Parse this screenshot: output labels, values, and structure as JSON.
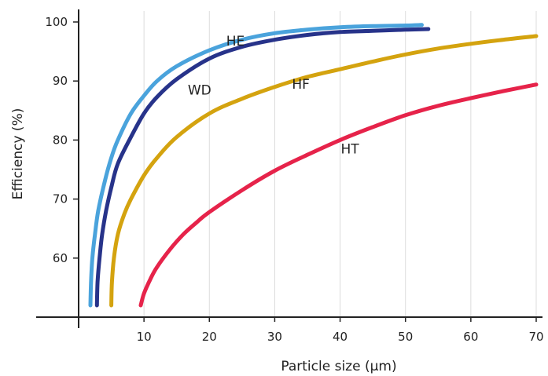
{
  "chart_data": {
    "type": "line",
    "title": "",
    "xlabel": "Particle size (µm)",
    "ylabel": "Efficiency (%)",
    "xlim": [
      0,
      70
    ],
    "ylim": [
      50,
      100
    ],
    "xticks": [
      10,
      20,
      30,
      40,
      50,
      60,
      70
    ],
    "yticks": [
      60,
      70,
      80,
      90,
      100
    ],
    "grid": "vertical",
    "series": [
      {
        "name": "HE",
        "color": "#4aa3dc",
        "points": [
          [
            1.8,
            52
          ],
          [
            1.9,
            56
          ],
          [
            2.1,
            60
          ],
          [
            2.5,
            64
          ],
          [
            3,
            68
          ],
          [
            4,
            73
          ],
          [
            5,
            77
          ],
          [
            6,
            80
          ],
          [
            8,
            84.5
          ],
          [
            10,
            87.5
          ],
          [
            12,
            90
          ],
          [
            15,
            92.5
          ],
          [
            20,
            95.2
          ],
          [
            25,
            97
          ],
          [
            30,
            98.1
          ],
          [
            35,
            98.7
          ],
          [
            40,
            99.1
          ],
          [
            45,
            99.3
          ],
          [
            50,
            99.4
          ],
          [
            52.5,
            99.5
          ]
        ]
      },
      {
        "name": "WD",
        "color": "#27338a",
        "points": [
          [
            2.8,
            52
          ],
          [
            2.9,
            56
          ],
          [
            3.2,
            60
          ],
          [
            3.6,
            64
          ],
          [
            4.2,
            68
          ],
          [
            5,
            72
          ],
          [
            6,
            76
          ],
          [
            8,
            80.5
          ],
          [
            10,
            84.5
          ],
          [
            12,
            87.3
          ],
          [
            15,
            90.3
          ],
          [
            20,
            93.8
          ],
          [
            25,
            95.8
          ],
          [
            30,
            97
          ],
          [
            35,
            97.8
          ],
          [
            40,
            98.3
          ],
          [
            45,
            98.5
          ],
          [
            50,
            98.7
          ],
          [
            53.5,
            98.8
          ]
        ]
      },
      {
        "name": "HF",
        "color": "#d4a30f",
        "points": [
          [
            5,
            52
          ],
          [
            5.1,
            56
          ],
          [
            5.4,
            60
          ],
          [
            6,
            64
          ],
          [
            7,
            67.5
          ],
          [
            8,
            70
          ],
          [
            10,
            74
          ],
          [
            12,
            77
          ],
          [
            15,
            80.5
          ],
          [
            20,
            84.5
          ],
          [
            25,
            87
          ],
          [
            30,
            89
          ],
          [
            35,
            90.7
          ],
          [
            40,
            92
          ],
          [
            45,
            93.3
          ],
          [
            50,
            94.5
          ],
          [
            55,
            95.5
          ],
          [
            60,
            96.3
          ],
          [
            65,
            97
          ],
          [
            70,
            97.6
          ]
        ]
      },
      {
        "name": "HT",
        "color": "#e6234a",
        "points": [
          [
            9.5,
            52
          ],
          [
            10,
            54
          ],
          [
            11,
            56.5
          ],
          [
            12,
            58.5
          ],
          [
            14,
            61.5
          ],
          [
            16,
            64
          ],
          [
            18,
            66
          ],
          [
            20,
            67.8
          ],
          [
            25,
            71.5
          ],
          [
            30,
            74.8
          ],
          [
            35,
            77.5
          ],
          [
            40,
            80
          ],
          [
            45,
            82.2
          ],
          [
            50,
            84.2
          ],
          [
            55,
            85.8
          ],
          [
            60,
            87.1
          ],
          [
            65,
            88.3
          ],
          [
            70,
            89.4
          ]
        ]
      }
    ],
    "labels": [
      {
        "text": "HE",
        "x": 24,
        "y": 96.8
      },
      {
        "text": "WD",
        "x": 18.5,
        "y": 88.5
      },
      {
        "text": "HF",
        "x": 34,
        "y": 89.5
      },
      {
        "text": "HT",
        "x": 41.5,
        "y": 78.5
      }
    ]
  }
}
